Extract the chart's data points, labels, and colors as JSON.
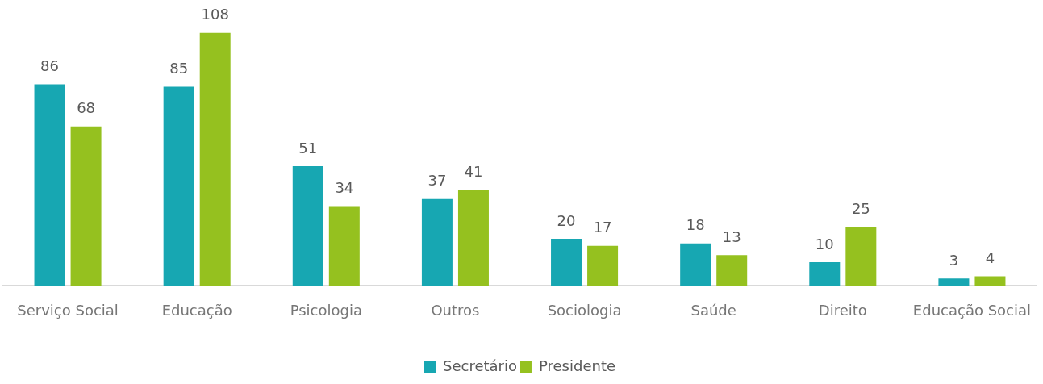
{
  "chart_data": {
    "type": "bar",
    "categories": [
      "Serviço Social",
      "Educação",
      "Psicologia",
      "Outros",
      "Sociologia",
      "Saúde",
      "Direito",
      "Educação Social"
    ],
    "series": [
      {
        "name": "Secretário",
        "color": "#17a7b2",
        "values": [
          86,
          85,
          51,
          37,
          20,
          18,
          10,
          3
        ]
      },
      {
        "name": "Presidente",
        "color": "#95c11f",
        "values": [
          68,
          108,
          34,
          41,
          17,
          13,
          25,
          4
        ]
      }
    ],
    "data_labels": true,
    "legend": "bottom"
  }
}
